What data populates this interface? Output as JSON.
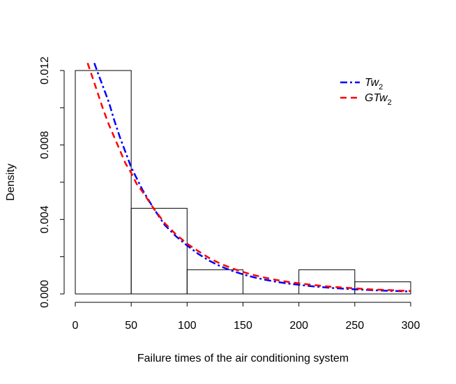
{
  "chart_data": {
    "type": "histogram",
    "title": "",
    "xlabel": "Failure times of the air conditioning system",
    "ylabel": "Density",
    "xlim": [
      0,
      300
    ],
    "ylim": [
      0,
      0.012
    ],
    "x_ticks": [
      0,
      50,
      100,
      150,
      200,
      250,
      300
    ],
    "x_tick_labels": [
      "0",
      "50",
      "100",
      "150",
      "200",
      "250",
      "300"
    ],
    "y_ticks": [
      0.0,
      0.002,
      0.004,
      0.006,
      0.008,
      0.01,
      0.012
    ],
    "y_tick_labels": [
      "0.000",
      "",
      "0.004",
      "",
      "0.008",
      "",
      "0.012"
    ],
    "histogram": {
      "bins": [
        {
          "start": 0,
          "end": 50,
          "density": 0.012
        },
        {
          "start": 50,
          "end": 100,
          "density": 0.0046
        },
        {
          "start": 100,
          "end": 150,
          "density": 0.0013
        },
        {
          "start": 150,
          "end": 200,
          "density": 0.0
        },
        {
          "start": 200,
          "end": 250,
          "density": 0.0013
        },
        {
          "start": 250,
          "end": 300,
          "density": 0.00065
        }
      ]
    },
    "series": [
      {
        "name": "Tw2",
        "label_main": "Tw",
        "label_sub": "2",
        "color": "#0000ff",
        "dash": "10,4,3,4",
        "x": [
          17,
          20,
          25,
          30,
          35,
          40,
          45,
          50,
          55,
          60,
          70,
          80,
          90,
          100,
          110,
          120,
          130,
          140,
          150,
          160,
          170,
          180,
          190,
          200,
          210,
          220,
          230,
          240,
          250,
          260,
          270,
          280,
          290,
          300
        ],
        "y": [
          0.0124,
          0.0119,
          0.0111,
          0.0103,
          0.0093,
          0.0084,
          0.0076,
          0.0068,
          0.0062,
          0.0056,
          0.0046,
          0.0037,
          0.0031,
          0.0026,
          0.00215,
          0.00178,
          0.00148,
          0.00125,
          0.00105,
          0.00089,
          0.00076,
          0.00065,
          0.00056,
          0.00049,
          0.00042,
          0.00037,
          0.00032,
          0.00028,
          0.00025,
          0.00022,
          0.00019,
          0.00017,
          0.00015,
          0.00013
        ]
      },
      {
        "name": "GTw2",
        "label_main": "GTw",
        "label_sub": "2",
        "color": "#ff0000",
        "dash": "9,6",
        "x": [
          11,
          15,
          20,
          25,
          30,
          35,
          40,
          45,
          50,
          55,
          60,
          70,
          80,
          90,
          100,
          110,
          120,
          130,
          140,
          150,
          160,
          170,
          180,
          190,
          200,
          210,
          220,
          230,
          240,
          250,
          260,
          270,
          280,
          290,
          300
        ],
        "y": [
          0.0124,
          0.0117,
          0.0108,
          0.0099,
          0.0091,
          0.0084,
          0.0077,
          0.007,
          0.0065,
          0.0059,
          0.0055,
          0.0046,
          0.0038,
          0.0032,
          0.0027,
          0.0023,
          0.00192,
          0.00162,
          0.00138,
          0.00118,
          0.00101,
          0.00087,
          0.00075,
          0.00065,
          0.00057,
          0.0005,
          0.00044,
          0.00038,
          0.00034,
          0.0003,
          0.00026,
          0.00023,
          0.00021,
          0.00018,
          0.00016
        ]
      }
    ],
    "legend": {
      "position": "top-right"
    }
  }
}
